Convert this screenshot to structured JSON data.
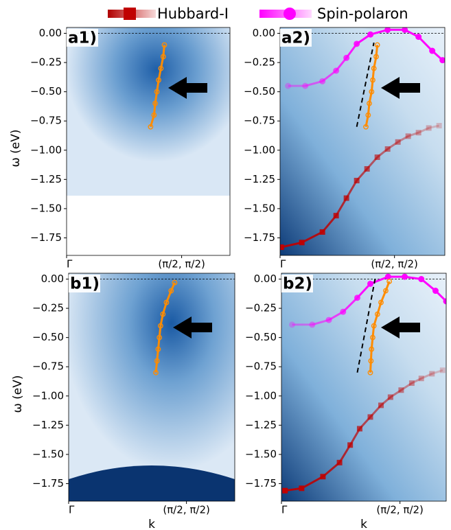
{
  "chart_data": [
    {
      "type": "dispersion",
      "label": "a1)",
      "ylabel": "ω (eV)",
      "xlim": [
        0,
        1.42
      ],
      "ylim": [
        -1.9,
        0.05
      ],
      "xticks": [
        {
          "value": 0,
          "label": "Γ"
        },
        {
          "value": 1,
          "label": "(π/2, π/2)"
        }
      ],
      "yticks": [
        {
          "value": 0,
          "label": "0.00"
        },
        {
          "value": -0.25,
          "label": "−0.25"
        },
        {
          "value": -0.5,
          "label": "−0.50"
        },
        {
          "value": -0.75,
          "label": "−0.75"
        },
        {
          "value": -1,
          "label": "−1.00"
        },
        {
          "value": -1.25,
          "label": "−1.25"
        },
        {
          "value": -1.5,
          "label": "−1.50"
        },
        {
          "value": -1.75,
          "label": "−1.75"
        }
      ],
      "reference_line": 0,
      "series": [
        {
          "color": "#ff8c00",
          "marker": "open-circle",
          "x": [
            0.85,
            0.84,
            0.82,
            0.8,
            0.785,
            0.77,
            0.76,
            0.73
          ],
          "values": [
            -0.1,
            -0.2,
            -0.3,
            -0.4,
            -0.5,
            -0.6,
            -0.7,
            -0.8
          ]
        }
      ]
    },
    {
      "type": "dispersion",
      "label": "a2)",
      "xlim": [
        0,
        1.44
      ],
      "ylim": [
        -1.9,
        0.05
      ],
      "xticks": [
        {
          "value": 0,
          "label": "Γ"
        },
        {
          "value": 1,
          "label": "(π/2, π/2)"
        }
      ],
      "yticks": [
        {
          "value": 0,
          "label": "0.00"
        },
        {
          "value": -0.25,
          "label": "−0.25"
        },
        {
          "value": -0.5,
          "label": "−0.50"
        },
        {
          "value": -0.75,
          "label": "−0.75"
        },
        {
          "value": -1,
          "label": "−1.00"
        },
        {
          "value": -1.25,
          "label": "−1.25"
        },
        {
          "value": -1.5,
          "label": "−1.50"
        },
        {
          "value": -1.75,
          "label": "−1.75"
        }
      ],
      "reference_line": 0,
      "series": [
        {
          "name": "Hubbard-I",
          "color": "#c00000",
          "marker": "square",
          "x": [
            0.01,
            0.19,
            0.37,
            0.49,
            0.58,
            0.67,
            0.76,
            0.85,
            0.94,
            1.03,
            1.12,
            1.21,
            1.3,
            1.39
          ],
          "values": [
            -1.83,
            -1.79,
            -1.7,
            -1.56,
            -1.41,
            -1.26,
            -1.16,
            -1.06,
            -0.99,
            -0.93,
            -0.88,
            -0.85,
            -0.81,
            -0.79
          ]
        },
        {
          "name": "Spin-polaron",
          "color": "#ff00ff",
          "marker": "circle",
          "x": [
            0.07,
            0.22,
            0.37,
            0.49,
            0.58,
            0.67,
            0.79,
            0.94,
            1.09,
            1.21,
            1.33,
            1.42
          ],
          "values": [
            -0.45,
            -0.45,
            -0.41,
            -0.32,
            -0.21,
            -0.09,
            -0.01,
            0.03,
            0.03,
            -0.03,
            -0.15,
            -0.23
          ]
        },
        {
          "color": "#000000",
          "marker": "dashed",
          "x": [
            0.67,
            0.82
          ],
          "values": [
            -0.8,
            -0.08
          ]
        },
        {
          "color": "#ff8c00",
          "marker": "open-circle",
          "x": [
            0.85,
            0.84,
            0.82,
            0.81,
            0.8,
            0.78,
            0.77,
            0.75
          ],
          "values": [
            -0.1,
            -0.2,
            -0.3,
            -0.4,
            -0.5,
            -0.6,
            -0.7,
            -0.8
          ]
        }
      ]
    },
    {
      "type": "dispersion",
      "label": "b1)",
      "ylabel": "ω (eV)",
      "xlabel": "k",
      "xlim": [
        0,
        1.41
      ],
      "ylim": [
        -1.9,
        0.05
      ],
      "xticks": [
        {
          "value": 0,
          "label": "Γ"
        },
        {
          "value": 1,
          "label": "(π/2, π/2)"
        }
      ],
      "yticks": [
        {
          "value": 0,
          "label": "0.00"
        },
        {
          "value": -0.25,
          "label": "−0.25"
        },
        {
          "value": -0.5,
          "label": "−0.50"
        },
        {
          "value": -0.75,
          "label": "−0.75"
        },
        {
          "value": -1,
          "label": "−1.00"
        },
        {
          "value": -1.25,
          "label": "−1.25"
        },
        {
          "value": -1.5,
          "label": "−1.50"
        },
        {
          "value": -1.75,
          "label": "−1.75"
        }
      ],
      "reference_line": 0,
      "series": [
        {
          "color": "#ff8c00",
          "marker": "open-circle",
          "x": [
            0.9,
            0.87,
            0.83,
            0.8,
            0.78,
            0.77,
            0.76,
            0.75,
            0.74
          ],
          "values": [
            -0.03,
            -0.1,
            -0.2,
            -0.3,
            -0.4,
            -0.5,
            -0.6,
            -0.7,
            -0.8
          ]
        }
      ]
    },
    {
      "type": "dispersion",
      "label": "b2)",
      "xlabel": "k",
      "xlim": [
        0,
        1.39
      ],
      "ylim": [
        -1.9,
        0.05
      ],
      "xticks": [
        {
          "value": 0,
          "label": "Γ"
        },
        {
          "value": 1,
          "label": "(π/2, π/2)"
        }
      ],
      "yticks": [
        {
          "value": 0,
          "label": "0.00"
        },
        {
          "value": -0.25,
          "label": "−0.25"
        },
        {
          "value": -0.5,
          "label": "−0.50"
        },
        {
          "value": -0.75,
          "label": "−0.75"
        },
        {
          "value": -1,
          "label": "−1.00"
        },
        {
          "value": -1.25,
          "label": "−1.25"
        },
        {
          "value": -1.5,
          "label": "−1.50"
        },
        {
          "value": -1.75,
          "label": "−1.75"
        }
      ],
      "reference_line": 0,
      "series": [
        {
          "name": "Hubbard-I",
          "color": "#c00000",
          "marker": "square",
          "x": [
            0.03,
            0.17,
            0.35,
            0.49,
            0.58,
            0.66,
            0.75,
            0.84,
            0.92,
            1.01,
            1.1,
            1.18,
            1.27,
            1.36
          ],
          "values": [
            -1.81,
            -1.79,
            -1.69,
            -1.57,
            -1.42,
            -1.28,
            -1.18,
            -1.08,
            -1.01,
            -0.95,
            -0.89,
            -0.85,
            -0.81,
            -0.78
          ]
        },
        {
          "name": "Spin-polaron",
          "color": "#ff00ff",
          "marker": "circle",
          "x": [
            0.09,
            0.26,
            0.4,
            0.52,
            0.64,
            0.75,
            0.9,
            1.04,
            1.18,
            1.3,
            1.39
          ],
          "values": [
            -0.39,
            -0.39,
            -0.35,
            -0.28,
            -0.16,
            -0.04,
            0.02,
            0.02,
            0.0,
            -0.1,
            -0.19
          ]
        },
        {
          "color": "#000000",
          "marker": "dashed",
          "x": [
            0.64,
            0.79
          ],
          "values": [
            -0.8,
            0.0
          ]
        },
        {
          "color": "#ff8c00",
          "marker": "open-circle",
          "x": [
            0.91,
            0.88,
            0.84,
            0.81,
            0.78,
            0.77,
            0.76,
            0.755,
            0.75
          ],
          "values": [
            -0.02,
            -0.1,
            -0.2,
            -0.3,
            -0.4,
            -0.5,
            -0.6,
            -0.7,
            -0.8
          ]
        }
      ]
    }
  ]
}
